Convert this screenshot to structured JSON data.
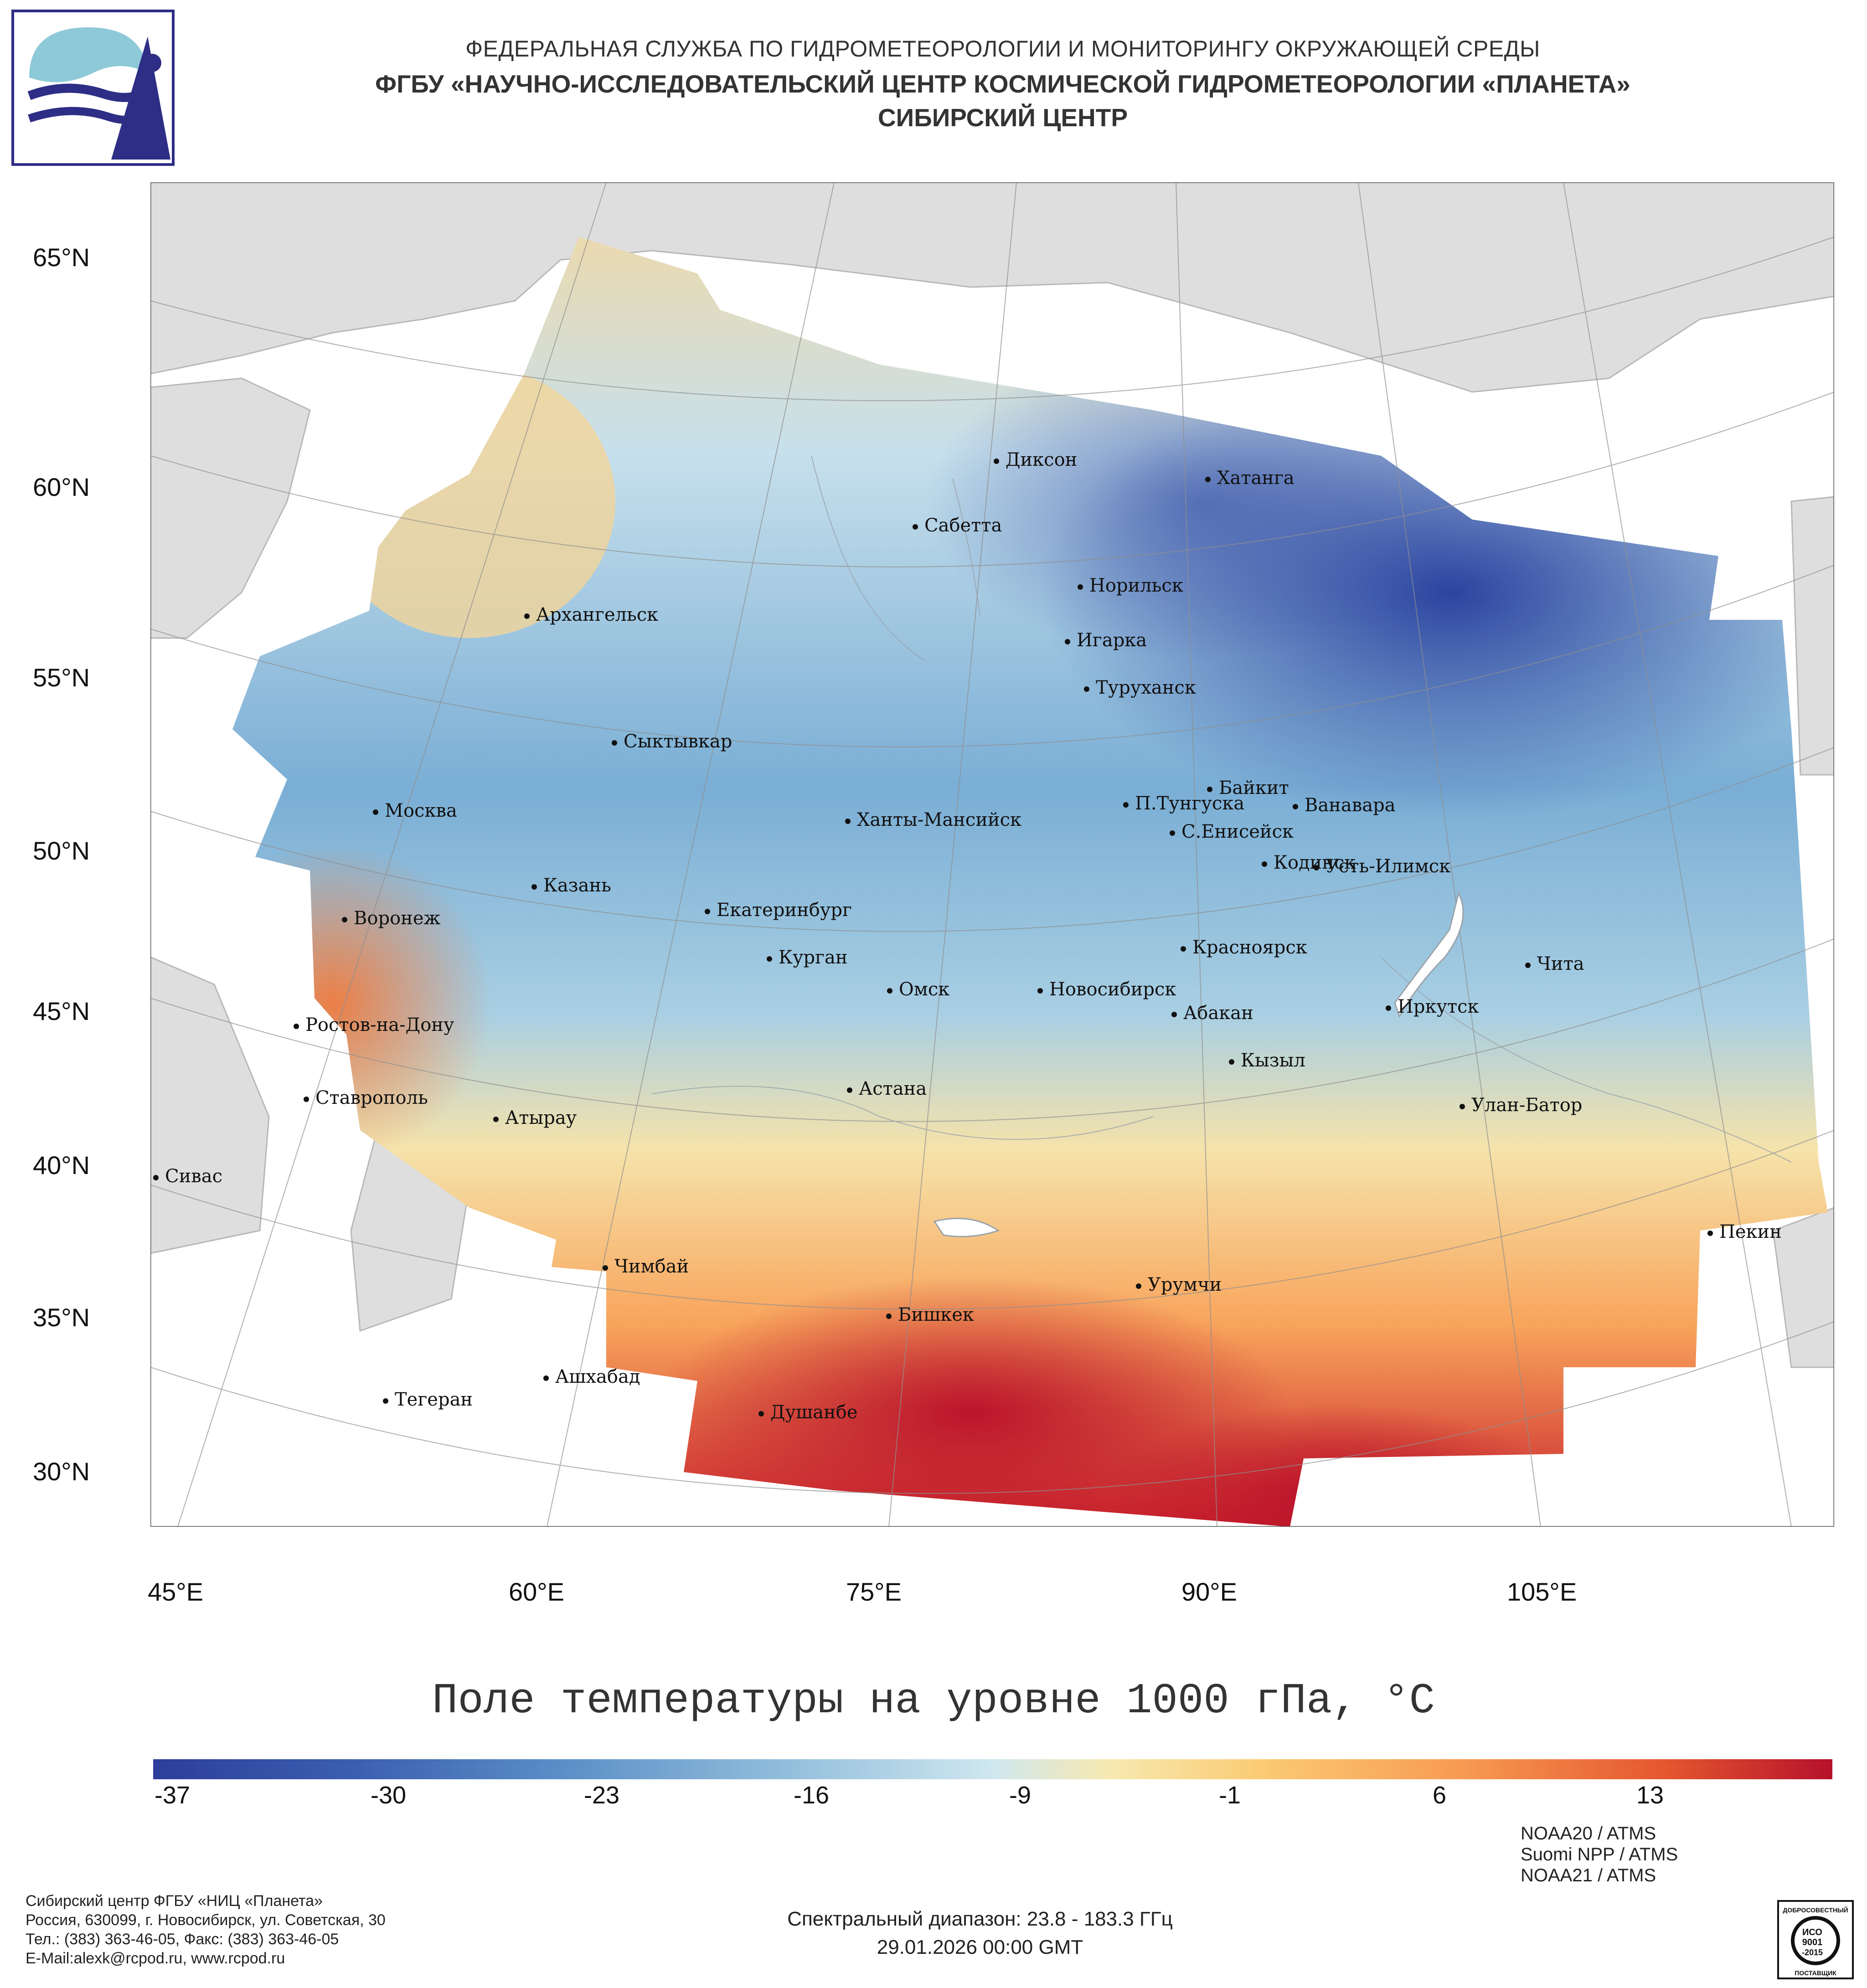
{
  "header": {
    "line1": "ФЕДЕРАЛЬНАЯ СЛУЖБА ПО ГИДРОМЕТЕОРОЛОГИИ И МОНИТОРИНГУ ОКРУЖАЮЩЕЙ СРЕДЫ",
    "line2": "ФГБУ «НАУЧНО-ИССЛЕДОВАТЕЛЬСКИЙ ЦЕНТР КОСМИЧЕСКОЙ ГИДРОМЕТЕОРОЛОГИИ «ПЛАНЕТА»",
    "line3": "СИБИРСКИЙ ЦЕНТР"
  },
  "map": {
    "title": "Поле температуры на уровне 1000 гПа, °С",
    "lat_labels": [
      "65°N",
      "60°N",
      "55°N",
      "50°N",
      "45°N",
      "40°N",
      "35°N",
      "30°N"
    ],
    "lon_labels": [
      "45°E",
      "60°E",
      "75°E",
      "90°E",
      "105°E"
    ],
    "cities": [
      "Диксон",
      "Хатанга",
      "Сабетта",
      "Норильск",
      "Архангельск",
      "Игарка",
      "Туруханск",
      "Сыктывкар",
      "Байкит",
      "П.Тунгуска",
      "Ванавара",
      "Москва",
      "Ханты-Мансийск",
      "С.Енисейск",
      "Кодинск",
      "Усть-Илимск",
      "Казань",
      "Екатеринбург",
      "Воронеж",
      "Красноярск",
      "Курган",
      "Чита",
      "Омск",
      "Новосибирск",
      "Иркутск",
      "Абакан",
      "Ростов-на-Дону",
      "Кызыл",
      "Астана",
      "Ставрополь",
      "Улан-Батор",
      "Атырау",
      "Сивас",
      "Пекин",
      "Чимбай",
      "Урумчи",
      "Бишкек",
      "Ашхабад",
      "Тегеран",
      "Душанбе"
    ],
    "colors": {
      "land": "#dedede",
      "ocean": "#ffffff",
      "grid": "#9a9a9a",
      "border": "#cfcfcf"
    }
  },
  "colorbar": {
    "ticks": [
      "-37",
      "-30",
      "-23",
      "-16",
      "-9",
      "-1",
      "6",
      "13"
    ],
    "tick_values": [
      -37,
      -30,
      -23,
      -16,
      -9,
      -1,
      6,
      13
    ],
    "range": [
      -38,
      18
    ],
    "colors": [
      "#2c3e9b",
      "#3b5fb0",
      "#5a8dc6",
      "#8fbcdb",
      "#cfe7ef",
      "#f7e9b0",
      "#fbcb74",
      "#f79a52",
      "#e5572f",
      "#b5112b"
    ]
  },
  "footer": {
    "left": [
      "Сибирский центр ФГБУ «НИЦ «Планета»",
      "Россия, 630099, г. Новосибирск, ул. Советская, 30",
      "Тел.: (383) 363-46-05, Факс: (383) 363-46-05",
      "E-Mail:alexk@rcpod.ru, www.rcpod.ru"
    ],
    "center": [
      "Спектральный диапазон: 23.8 - 183.3 ГГц",
      "29.01.2026 00:00 GMT"
    ],
    "right": [
      "NOAA20 / ATMS",
      "Suomi NPP / ATMS",
      "NOAA21 / ATMS"
    ],
    "iso": [
      "ДОБРОСОВЕСТНЫЙ",
      "ИСО",
      "9001",
      "-2015",
      "ПОСТАВЩИК"
    ]
  }
}
